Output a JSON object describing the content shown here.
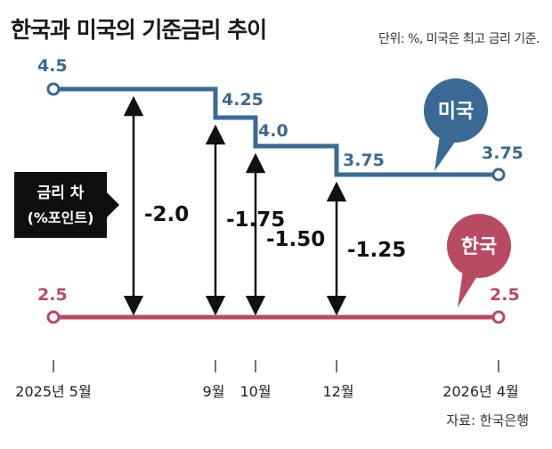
{
  "title": "한국과 미국의 기준금리 추이",
  "subtitle": "단위: %, 미국은 최고 금리 기준.",
  "source": "자료: 한국은행",
  "chart_data": {
    "type": "line",
    "title": "한국과 미국의 기준금리 추이",
    "unit": "%",
    "x_ticks": [
      "2025년 5월",
      "9월",
      "10월",
      "12월",
      "2026년 4월"
    ],
    "series": [
      {
        "name": "미국",
        "color": "#3a6a94",
        "step": true,
        "points": [
          {
            "x": "2025년 5월",
            "y": 4.5,
            "label": "4.5"
          },
          {
            "x": "9월",
            "y": 4.25,
            "label": "4.25"
          },
          {
            "x": "10월",
            "y": 4.0,
            "label": "4.0"
          },
          {
            "x": "12월",
            "y": 3.75,
            "label": "3.75"
          },
          {
            "x": "2026년 4월",
            "y": 3.75,
            "label": "3.75"
          }
        ]
      },
      {
        "name": "한국",
        "color": "#b84a62",
        "step": true,
        "points": [
          {
            "x": "2025년 5월",
            "y": 2.5,
            "label": "2.5"
          },
          {
            "x": "2026년 4월",
            "y": 2.5,
            "label": "2.5"
          }
        ]
      }
    ],
    "spread_label": "금리 차\n(%포인트)",
    "spreads": [
      {
        "x": "2025년 5월",
        "value": -2.0,
        "label": "-2.0"
      },
      {
        "x": "9월",
        "value": -1.75,
        "label": "-1.75"
      },
      {
        "x": "10월",
        "value": -1.5,
        "label": "-1.50"
      },
      {
        "x": "12월",
        "value": -1.25,
        "label": "-1.25"
      }
    ],
    "callouts": [
      {
        "series": "미국",
        "text": "미국"
      },
      {
        "series": "한국",
        "text": "한국"
      }
    ]
  }
}
